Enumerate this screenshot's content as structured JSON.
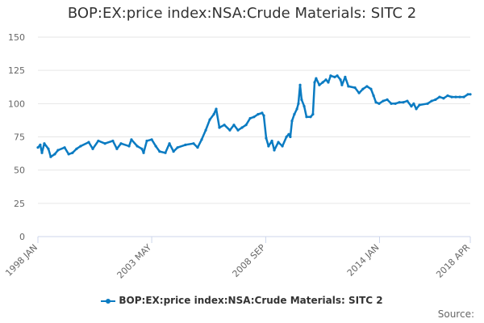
{
  "chart_data": {
    "type": "line",
    "title": "BOP:EX:price index:NSA:Crude Materials: SITC 2",
    "xlabel": "",
    "ylabel": "",
    "ylim": [
      0,
      150
    ],
    "xlim": [
      1998.0,
      2018.25
    ],
    "yticks": [
      "0",
      "25",
      "50",
      "75",
      "100",
      "125",
      "150"
    ],
    "ytick_values": [
      0,
      25,
      50,
      75,
      100,
      125,
      150
    ],
    "xticks": [
      {
        "label": "1998 JAN",
        "value": 1998.0
      },
      {
        "label": "2003 MAY",
        "value": 2003.33
      },
      {
        "label": "2008 SEP",
        "value": 2008.67
      },
      {
        "label": "2014 JAN",
        "value": 2014.0
      },
      {
        "label": "2018 APR",
        "value": 2018.25
      }
    ],
    "grid": true,
    "legend_placement": "bottom",
    "source_label": "Source:",
    "color": "#0a7bc2",
    "series": [
      {
        "name": "BOP:EX:price index:NSA:Crude Materials: SITC 2",
        "x": [
          1998.0,
          1998.11,
          1998.19,
          1998.3,
          1998.49,
          1998.6,
          1998.79,
          1998.94,
          1999.25,
          1999.44,
          1999.62,
          1999.81,
          2000.0,
          2000.38,
          2000.57,
          2000.83,
          2001.14,
          2001.51,
          2001.7,
          2001.89,
          2002.27,
          2002.38,
          2002.65,
          2002.87,
          2002.95,
          2003.1,
          2003.33,
          2003.52,
          2003.7,
          2003.97,
          2004.16,
          2004.35,
          2004.54,
          2004.91,
          2005.29,
          2005.48,
          2005.67,
          2005.86,
          2006.05,
          2006.24,
          2006.35,
          2006.5,
          2006.73,
          2006.99,
          2007.18,
          2007.37,
          2007.56,
          2007.75,
          2007.94,
          2008.12,
          2008.31,
          2008.5,
          2008.58,
          2008.69,
          2008.8,
          2008.96,
          2009.07,
          2009.26,
          2009.45,
          2009.64,
          2009.75,
          2009.82,
          2009.9,
          2010.01,
          2010.13,
          2010.2,
          2010.28,
          2010.35,
          2010.47,
          2010.58,
          2010.77,
          2010.88,
          2010.96,
          2011.03,
          2011.18,
          2011.34,
          2011.49,
          2011.6,
          2011.71,
          2011.9,
          2012.02,
          2012.17,
          2012.24,
          2012.39,
          2012.54,
          2012.85,
          2013.04,
          2013.22,
          2013.41,
          2013.6,
          2013.72,
          2013.83,
          2013.98,
          2014.17,
          2014.36,
          2014.55,
          2014.74,
          2014.93,
          2015.11,
          2015.3,
          2015.49,
          2015.6,
          2015.72,
          2015.87,
          2016.25,
          2016.44,
          2016.62,
          2016.81,
          2017.0,
          2017.19,
          2017.38,
          2017.57,
          2017.76,
          2017.95,
          2018.14,
          2018.25
        ],
        "y": [
          67,
          69,
          63,
          70,
          66,
          60,
          62,
          65,
          67,
          62,
          63,
          66,
          68,
          71,
          66,
          72,
          70,
          72,
          66,
          70,
          68,
          73,
          68,
          66,
          63,
          72,
          73,
          68,
          64,
          63,
          70,
          64,
          67,
          69,
          70,
          67,
          73,
          80,
          88,
          92,
          96,
          82,
          84,
          80,
          84,
          80,
          82,
          84,
          89,
          90,
          92,
          93,
          91,
          74,
          68,
          72,
          65,
          71,
          68,
          75,
          77,
          75,
          87,
          92,
          96,
          100,
          114,
          103,
          98,
          90,
          90,
          92,
          116,
          119,
          114,
          116,
          118,
          116,
          121,
          120,
          121,
          118,
          114,
          120,
          113,
          112,
          108,
          111,
          113,
          111,
          106,
          101,
          100,
          102,
          103,
          100,
          100,
          101,
          101,
          102,
          98,
          100,
          96,
          99,
          100,
          102,
          103,
          105,
          104,
          106,
          105,
          105,
          105,
          105,
          107,
          107
        ]
      }
    ]
  }
}
